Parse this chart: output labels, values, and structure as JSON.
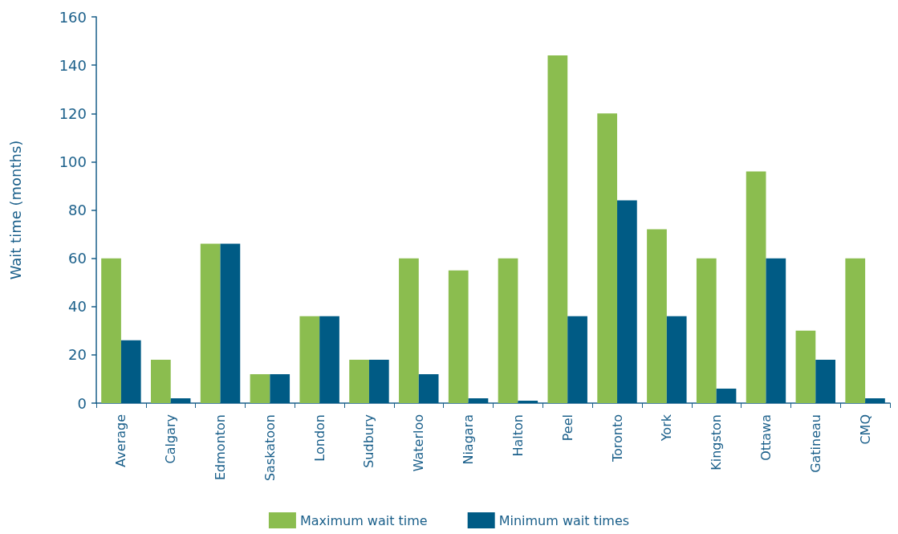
{
  "chart_data": {
    "type": "bar",
    "ylabel": "Wait time (months)",
    "categories": [
      "Average",
      "Calgary",
      "Edmonton",
      "Saskatoon",
      "London",
      "Sudbury",
      "Waterloo",
      "Niagara",
      "Halton",
      "Peel",
      "Toronto",
      "York",
      "Kingston",
      "Ottawa",
      "Gatineau",
      "CMQ"
    ],
    "series": [
      {
        "name": "Maximum wait time",
        "color": "#8bbd4f",
        "values": [
          60,
          18,
          66,
          12,
          36,
          18,
          60,
          55,
          60,
          144,
          120,
          72,
          60,
          96,
          30,
          60
        ]
      },
      {
        "name": "Minimum wait times",
        "color": "#005b85",
        "values": [
          26,
          2,
          66,
          12,
          36,
          18,
          12,
          2,
          1,
          36,
          84,
          36,
          6,
          60,
          18,
          2
        ]
      }
    ],
    "ylim": [
      0,
      160
    ],
    "yticks": [
      0,
      20,
      40,
      60,
      80,
      100,
      120,
      140,
      160
    ],
    "grid": false,
    "legend": "bottom"
  }
}
